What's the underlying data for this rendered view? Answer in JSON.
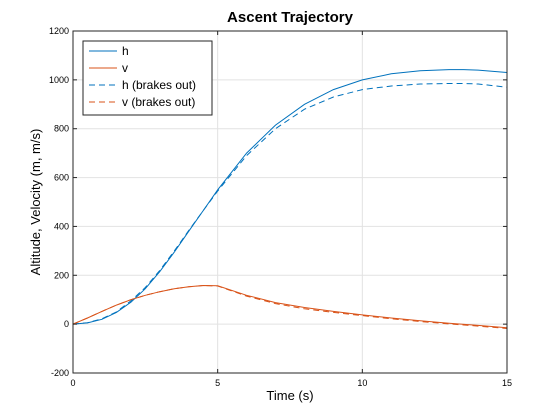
{
  "chart_data": {
    "type": "line",
    "title": "Ascent Trajectory",
    "xlabel": "Time (s)",
    "ylabel": "Altitude, Velocity (m, m/s)",
    "xlim": [
      0,
      15
    ],
    "ylim": [
      -200,
      1200
    ],
    "xticks": [
      0,
      5,
      10,
      15
    ],
    "yticks": [
      -200,
      0,
      200,
      400,
      600,
      800,
      1000,
      1200
    ],
    "grid": true,
    "legend_location": "top-left",
    "series": [
      {
        "name": "h",
        "color": "#0072BD",
        "style": "solid",
        "x": [
          0,
          0.5,
          1,
          1.5,
          2,
          2.5,
          3,
          3.5,
          4,
          4.5,
          5,
          6,
          7,
          8,
          9,
          10,
          11,
          12,
          13,
          13.5,
          14,
          15
        ],
        "y": [
          0,
          5,
          20,
          48,
          90,
          145,
          215,
          295,
          380,
          465,
          550,
          700,
          815,
          900,
          960,
          1000,
          1025,
          1037,
          1042,
          1042,
          1040,
          1030
        ]
      },
      {
        "name": "v",
        "color": "#D95319",
        "style": "solid",
        "x": [
          0,
          0.5,
          1,
          1.5,
          2,
          2.5,
          3,
          3.5,
          4,
          4.5,
          5,
          6,
          7,
          8,
          9,
          10,
          11,
          12,
          13,
          14,
          15
        ],
        "y": [
          0,
          25,
          52,
          78,
          100,
          118,
          133,
          145,
          153,
          158,
          157,
          118,
          88,
          68,
          52,
          38,
          25,
          14,
          4,
          -5,
          -15
        ]
      },
      {
        "name": "h (brakes out)",
        "color": "#0072BD",
        "style": "dashed",
        "x": [
          0,
          0.5,
          1,
          1.5,
          2,
          2.5,
          3,
          3.5,
          4,
          4.5,
          5,
          6,
          7,
          8,
          9,
          10,
          11,
          12,
          13,
          13.5,
          14,
          15
        ],
        "y": [
          0,
          6,
          22,
          50,
          95,
          150,
          220,
          300,
          383,
          465,
          545,
          690,
          800,
          880,
          930,
          960,
          975,
          983,
          985,
          985,
          983,
          970
        ]
      },
      {
        "name": "v (brakes out)",
        "color": "#D95319",
        "style": "dashed",
        "x": [
          0,
          0.5,
          1,
          1.5,
          2,
          2.5,
          3,
          3.5,
          4,
          4.5,
          5,
          6,
          7,
          8,
          9,
          10,
          11,
          12,
          13,
          14,
          15
        ],
        "y": [
          0,
          25,
          52,
          78,
          100,
          118,
          133,
          145,
          153,
          158,
          156,
          115,
          84,
          63,
          48,
          35,
          22,
          11,
          1,
          -8,
          -18
        ]
      }
    ]
  }
}
